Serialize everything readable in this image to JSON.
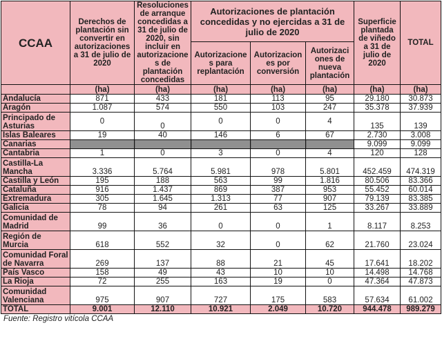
{
  "headers": {
    "ccaa": "CCAA",
    "derechos": "Derechos de plantación sin convertir en autorizaciones a 31 de julio de 2020",
    "resoluciones": "Resoluciones de arranque concedidas a 31 de julio de 2020, sin incluir en autorizacione s de plantación concedidas",
    "group": "Autorizaciones de plantación concedidas y no ejercidas a 31 de julio de 2020",
    "replantacion": "Autorizacione s para replantación",
    "conversion": "Autorizacion es por conversión",
    "nueva": "Autorizaci ones de nueva plantación",
    "superficie": "Superficie plantada de viñedo a 31 de julio de 2020",
    "total": "TOTAL",
    "unit": "(ha)"
  },
  "rows": [
    {
      "name": "Andalucía",
      "v": [
        "871",
        "433",
        "181",
        "113",
        "95",
        "29.180",
        "30.873"
      ]
    },
    {
      "name": "Aragón",
      "v": [
        "1.087",
        "574",
        "550",
        "103",
        "247",
        "35.378",
        "37.939"
      ]
    },
    {
      "name": "Principado de Asturias",
      "v": [
        "0",
        "0",
        "0",
        "0",
        "4",
        "135",
        "139"
      ]
    },
    {
      "name": "Islas Baleares",
      "v": [
        "19",
        "40",
        "146",
        "6",
        "67",
        "2.730",
        "3.008"
      ]
    },
    {
      "name": "Canarias",
      "v": [
        "",
        "",
        "",
        "",
        "",
        "9.099",
        "9.099"
      ]
    },
    {
      "name": "Cantabria",
      "v": [
        "1",
        "0",
        "3",
        "0",
        "4",
        "120",
        "128"
      ]
    },
    {
      "name": "Castilla-La Mancha",
      "v": [
        "3.336",
        "5.764",
        "5.981",
        "978",
        "5.801",
        "452.459",
        "474.319"
      ]
    },
    {
      "name": "Castilla y León",
      "v": [
        "195",
        "188",
        "563",
        "99",
        "1.816",
        "80.506",
        "83.366"
      ]
    },
    {
      "name": "Cataluña",
      "v": [
        "916",
        "1.437",
        "869",
        "387",
        "953",
        "55.452",
        "60.014"
      ]
    },
    {
      "name": "Extremadura",
      "v": [
        "305",
        "1.645",
        "1.313",
        "77",
        "907",
        "79.139",
        "83.385"
      ]
    },
    {
      "name": "Galicia",
      "v": [
        "78",
        "94",
        "261",
        "63",
        "125",
        "33.267",
        "33.889"
      ]
    },
    {
      "name": "Comunidad de Madrid",
      "v": [
        "99",
        "36",
        "0",
        "0",
        "1",
        "8.117",
        "8.253"
      ]
    },
    {
      "name": "Región de Murcia",
      "v": [
        "618",
        "552",
        "32",
        "0",
        "62",
        "21.760",
        "23.024"
      ]
    },
    {
      "name": "Comunidad Foral de Navarra",
      "v": [
        "269",
        "137",
        "88",
        "21",
        "45",
        "17.641",
        "18.202"
      ]
    },
    {
      "name": "País Vasco",
      "v": [
        "158",
        "49",
        "43",
        "10",
        "10",
        "14.498",
        "14.768"
      ]
    },
    {
      "name": "La Rioja",
      "v": [
        "72",
        "255",
        "163",
        "19",
        "0",
        "47.364",
        "47.873"
      ]
    },
    {
      "name": "Comunidad Valenciana",
      "v": [
        "975",
        "907",
        "727",
        "175",
        "583",
        "57.634",
        "61.002"
      ]
    }
  ],
  "total_row": {
    "name": "TOTAL",
    "v": [
      "9.001",
      "12.110",
      "10.921",
      "2.049",
      "10.720",
      "944.478",
      "989.279"
    ]
  },
  "footnote": "Fuente: Registro vitícola CCAA",
  "colors": {
    "header_bg": "#f2b8bd",
    "border": "#111111"
  }
}
